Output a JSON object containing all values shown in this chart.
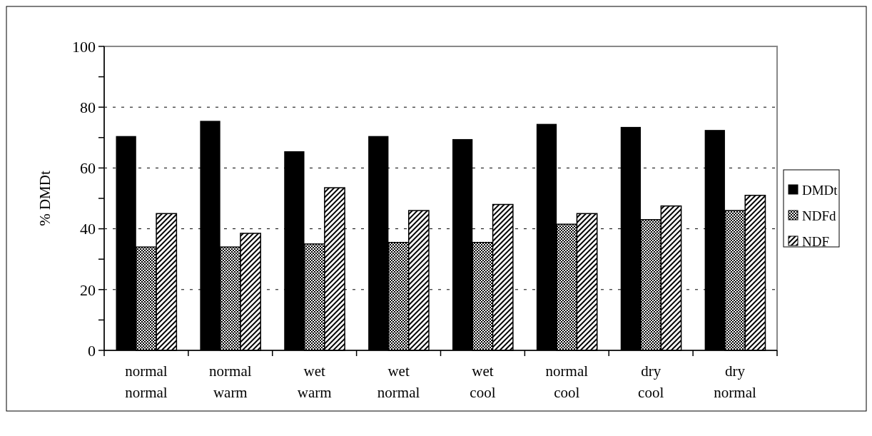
{
  "chart_data": {
    "type": "bar",
    "ylabel": "% DMDt",
    "categories": [
      "normal\nnormal",
      "normal\nwarm",
      "wet\nwarm",
      "wet\nnormal",
      "wet\ncool",
      "normal\ncool",
      "dry\ncool",
      "dry\nnormal"
    ],
    "series": [
      {
        "name": "DMDt",
        "color": "#000000",
        "values": [
          70.5,
          75.5,
          65.5,
          70.5,
          69.5,
          74.5,
          73.5,
          72.5
        ]
      },
      {
        "name": "NDFd",
        "color": "#000000",
        "values": [
          34,
          34,
          35,
          35.5,
          35.5,
          41.5,
          43,
          46
        ]
      },
      {
        "name": "NDF",
        "color": "#000000",
        "values": [
          45,
          38.5,
          53.5,
          46,
          48,
          45,
          47.5,
          51
        ]
      }
    ],
    "ylim": [
      0,
      100
    ],
    "yticks": [
      0,
      {
        "value": 10,
        "label": null
      },
      20,
      {
        "value": 30,
        "label": null
      },
      40,
      {
        "value": 50,
        "label": null
      },
      60,
      {
        "value": 70,
        "label": null
      },
      80,
      {
        "value": 90,
        "label": null
      },
      100
    ],
    "grid": "y",
    "legend": "right"
  }
}
